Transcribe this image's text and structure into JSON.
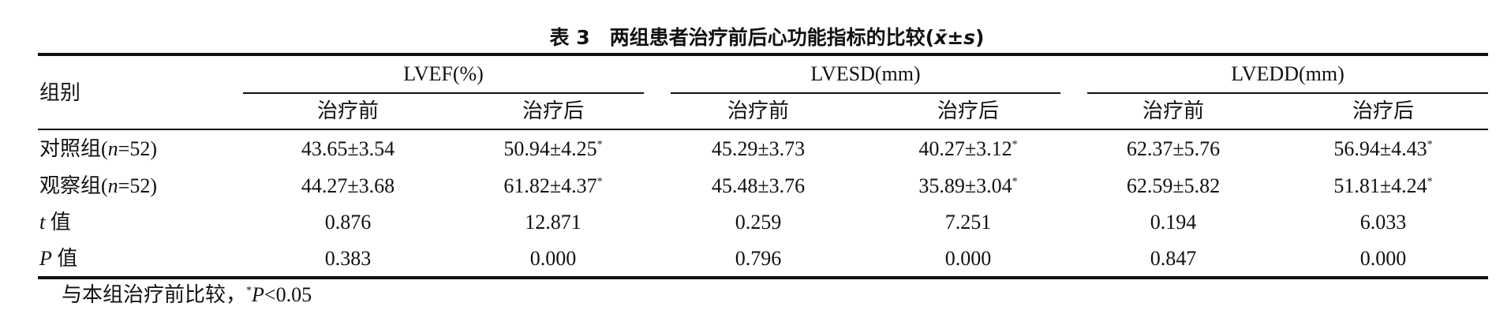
{
  "title": [
    {
      "text": "表 3　两组患者治疗前后心功能指标的比较("
    },
    {
      "text": "x̄",
      "italic": true
    },
    {
      "text": "±"
    },
    {
      "text": "s",
      "italic": true
    },
    {
      "text": ")"
    }
  ],
  "table": {
    "stub": "组别",
    "groups": [
      "LVEF(%)",
      "LVESD(mm)",
      "LVEDD(mm)"
    ],
    "subheaders": [
      "治疗前",
      "治疗后",
      "治疗前",
      "治疗后",
      "治疗前",
      "治疗后"
    ],
    "rows": [
      {
        "label": [
          {
            "text": "对照组("
          },
          {
            "text": "n",
            "italic": true
          },
          {
            "text": "=52)"
          }
        ],
        "cells": [
          {
            "text": "43.65±3.54"
          },
          {
            "text": "50.94±4.25",
            "note": "*"
          },
          {
            "text": "45.29±3.73"
          },
          {
            "text": "40.27±3.12",
            "note": "*"
          },
          {
            "text": "62.37±5.76"
          },
          {
            "text": "56.94±4.43",
            "note": "*"
          }
        ]
      },
      {
        "label": [
          {
            "text": "观察组("
          },
          {
            "text": "n",
            "italic": true
          },
          {
            "text": "=52)"
          }
        ],
        "cells": [
          {
            "text": "44.27±3.68"
          },
          {
            "text": "61.82±4.37",
            "note": "*"
          },
          {
            "text": "45.48±3.76"
          },
          {
            "text": "35.89±3.04",
            "note": "*"
          },
          {
            "text": "62.59±5.82"
          },
          {
            "text": "51.81±4.24",
            "note": "*"
          }
        ]
      },
      {
        "label": [
          {
            "text": "t",
            "italic": true
          },
          {
            "text": " 值"
          }
        ],
        "cells": [
          {
            "text": "0.876"
          },
          {
            "text": "12.871"
          },
          {
            "text": "0.259"
          },
          {
            "text": "7.251"
          },
          {
            "text": "0.194"
          },
          {
            "text": "6.033"
          }
        ]
      },
      {
        "label": [
          {
            "text": "P",
            "italic": true
          },
          {
            "text": " 值"
          }
        ],
        "cells": [
          {
            "text": "0.383"
          },
          {
            "text": "0.000"
          },
          {
            "text": "0.796"
          },
          {
            "text": "0.000"
          },
          {
            "text": "0.847"
          },
          {
            "text": "0.000"
          }
        ]
      }
    ]
  },
  "footnote": [
    {
      "text": "与本组治疗前比较，"
    },
    {
      "text": "*",
      "sup": true
    },
    {
      "text": "P",
      "italic": true
    },
    {
      "text": "<0.05"
    }
  ]
}
